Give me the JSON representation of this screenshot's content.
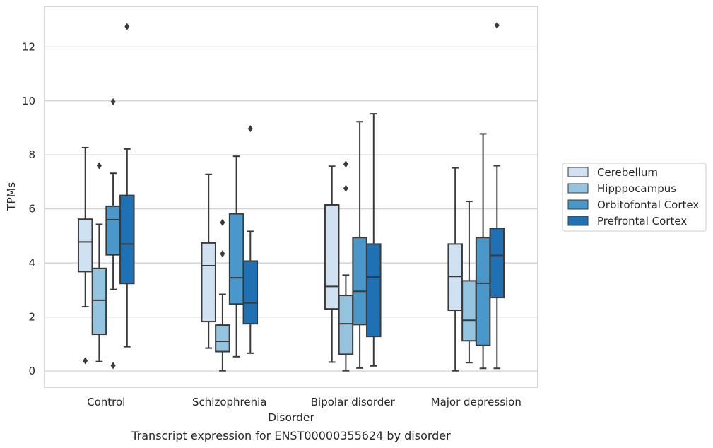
{
  "chart_data": {
    "type": "box",
    "xlabel": "Disorder",
    "ylabel": "TPMs",
    "caption": "Transcript expression for ENST00000355624 by disorder",
    "ylim": [
      -0.6,
      13.5
    ],
    "yticks": [
      0,
      2,
      4,
      6,
      8,
      10,
      12
    ],
    "grid": true,
    "legend_position": "right",
    "categories": [
      "Control",
      "Schizophrenia",
      "Bipolar disorder",
      "Major depression"
    ],
    "series": [
      {
        "name": "Cerebellum",
        "color": "#d0e1f2",
        "boxes": [
          {
            "whislo": 2.38,
            "q1": 3.68,
            "med": 4.78,
            "q3": 5.62,
            "whishi": 8.27,
            "fliers": [
              0.38
            ]
          },
          {
            "whislo": 0.85,
            "q1": 1.83,
            "med": 3.9,
            "q3": 4.74,
            "whishi": 7.28,
            "fliers": []
          },
          {
            "whislo": 0.33,
            "q1": 2.3,
            "med": 3.13,
            "q3": 6.15,
            "whishi": 7.58,
            "fliers": []
          },
          {
            "whislo": 0.01,
            "q1": 2.25,
            "med": 3.5,
            "q3": 4.7,
            "whishi": 7.52,
            "fliers": []
          }
        ]
      },
      {
        "name": "Hipppocampus",
        "color": "#94c4df",
        "boxes": [
          {
            "whislo": 0.35,
            "q1": 1.36,
            "med": 2.62,
            "q3": 3.8,
            "whishi": 5.43,
            "fliers": [
              7.6
            ]
          },
          {
            "whislo": 0.01,
            "q1": 0.72,
            "med": 1.1,
            "q3": 1.7,
            "whishi": 2.84,
            "fliers": [
              4.34,
              5.5
            ]
          },
          {
            "whislo": 0.01,
            "q1": 0.62,
            "med": 1.75,
            "q3": 2.8,
            "whishi": 3.55,
            "fliers": [
              6.76,
              7.66
            ]
          },
          {
            "whislo": 0.31,
            "q1": 1.12,
            "med": 1.88,
            "q3": 3.34,
            "whishi": 6.28,
            "fliers": []
          }
        ]
      },
      {
        "name": "Orbitofontal Cortex",
        "color": "#4a98c9",
        "boxes": [
          {
            "whislo": 3.02,
            "q1": 4.3,
            "med": 5.6,
            "q3": 6.1,
            "whishi": 7.32,
            "fliers": [
              0.2,
              9.97
            ]
          },
          {
            "whislo": 0.53,
            "q1": 2.48,
            "med": 3.45,
            "q3": 5.82,
            "whishi": 7.95,
            "fliers": []
          },
          {
            "whislo": 0.11,
            "q1": 1.72,
            "med": 2.95,
            "q3": 4.94,
            "whishi": 9.23,
            "fliers": []
          },
          {
            "whislo": 0.1,
            "q1": 0.95,
            "med": 3.25,
            "q3": 4.94,
            "whishi": 8.78,
            "fliers": []
          }
        ]
      },
      {
        "name": "Prefrontal Cortex",
        "color": "#2070b4",
        "boxes": [
          {
            "whislo": 0.9,
            "q1": 3.24,
            "med": 4.7,
            "q3": 6.5,
            "whishi": 8.22,
            "fliers": [
              12.75
            ]
          },
          {
            "whislo": 0.66,
            "q1": 1.75,
            "med": 2.52,
            "q3": 4.07,
            "whishi": 5.17,
            "fliers": [
              8.97
            ]
          },
          {
            "whislo": 0.19,
            "q1": 1.28,
            "med": 3.48,
            "q3": 4.7,
            "whishi": 9.52,
            "fliers": []
          },
          {
            "whislo": 0.1,
            "q1": 2.72,
            "med": 4.28,
            "q3": 5.28,
            "whishi": 7.6,
            "fliers": [
              12.8
            ]
          }
        ]
      }
    ]
  }
}
